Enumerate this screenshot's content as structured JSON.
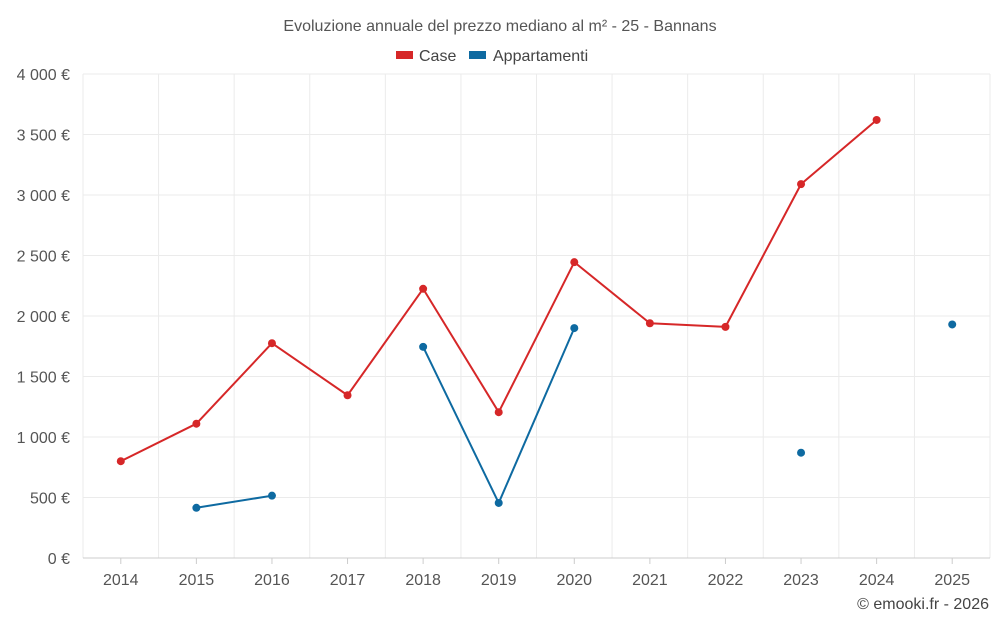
{
  "chart_data": {
    "type": "line",
    "title": "Evoluzione annuale del prezzo mediano al m² - 25 - Bannans",
    "xlabel": "",
    "ylabel": "",
    "categories": [
      "2014",
      "2015",
      "2016",
      "2017",
      "2018",
      "2019",
      "2020",
      "2021",
      "2022",
      "2023",
      "2024",
      "2025"
    ],
    "ylim": [
      0,
      4000
    ],
    "y_ticks": [
      0,
      500,
      1000,
      1500,
      2000,
      2500,
      3000,
      3500,
      4000
    ],
    "y_tick_labels": [
      "0 €",
      "500 €",
      "1 000 €",
      "1 500 €",
      "2 000 €",
      "2 500 €",
      "3 000 €",
      "3 500 €",
      "4 000 €"
    ],
    "grid": true,
    "legend_position": "top-center",
    "series": [
      {
        "name": "Case",
        "color": "#d62728",
        "values": [
          800,
          1110,
          1775,
          1345,
          2225,
          1205,
          2445,
          1940,
          1910,
          3090,
          3620,
          null
        ]
      },
      {
        "name": "Appartamenti",
        "color": "#0e6aa1",
        "values": [
          null,
          415,
          515,
          null,
          1745,
          455,
          1900,
          null,
          null,
          870,
          null,
          1930
        ]
      }
    ]
  },
  "credit": "© emooki.fr - 2026"
}
